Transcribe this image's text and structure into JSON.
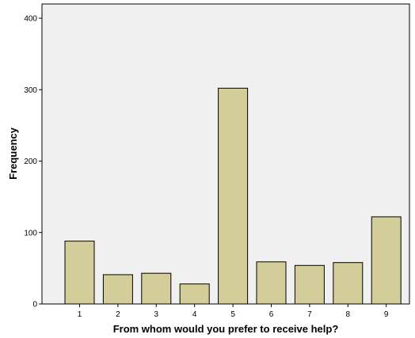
{
  "chart_data": {
    "type": "bar",
    "title": "",
    "xlabel": "From whom would you prefer to receive help?",
    "ylabel": "Frequency",
    "categories": [
      "1",
      "2",
      "3",
      "4",
      "5",
      "6",
      "7",
      "8",
      "9"
    ],
    "values": [
      88,
      41,
      43,
      28,
      302,
      59,
      54,
      58,
      122
    ],
    "ylim": [
      0,
      400
    ],
    "yticks": [
      0,
      100,
      200,
      300,
      400
    ],
    "grid": false,
    "legend": "none",
    "colors": {
      "bar_fill": "#d3ce99",
      "bar_stroke": "#000000",
      "plot_background": "#f0f0f0",
      "axis": "#000000"
    }
  }
}
